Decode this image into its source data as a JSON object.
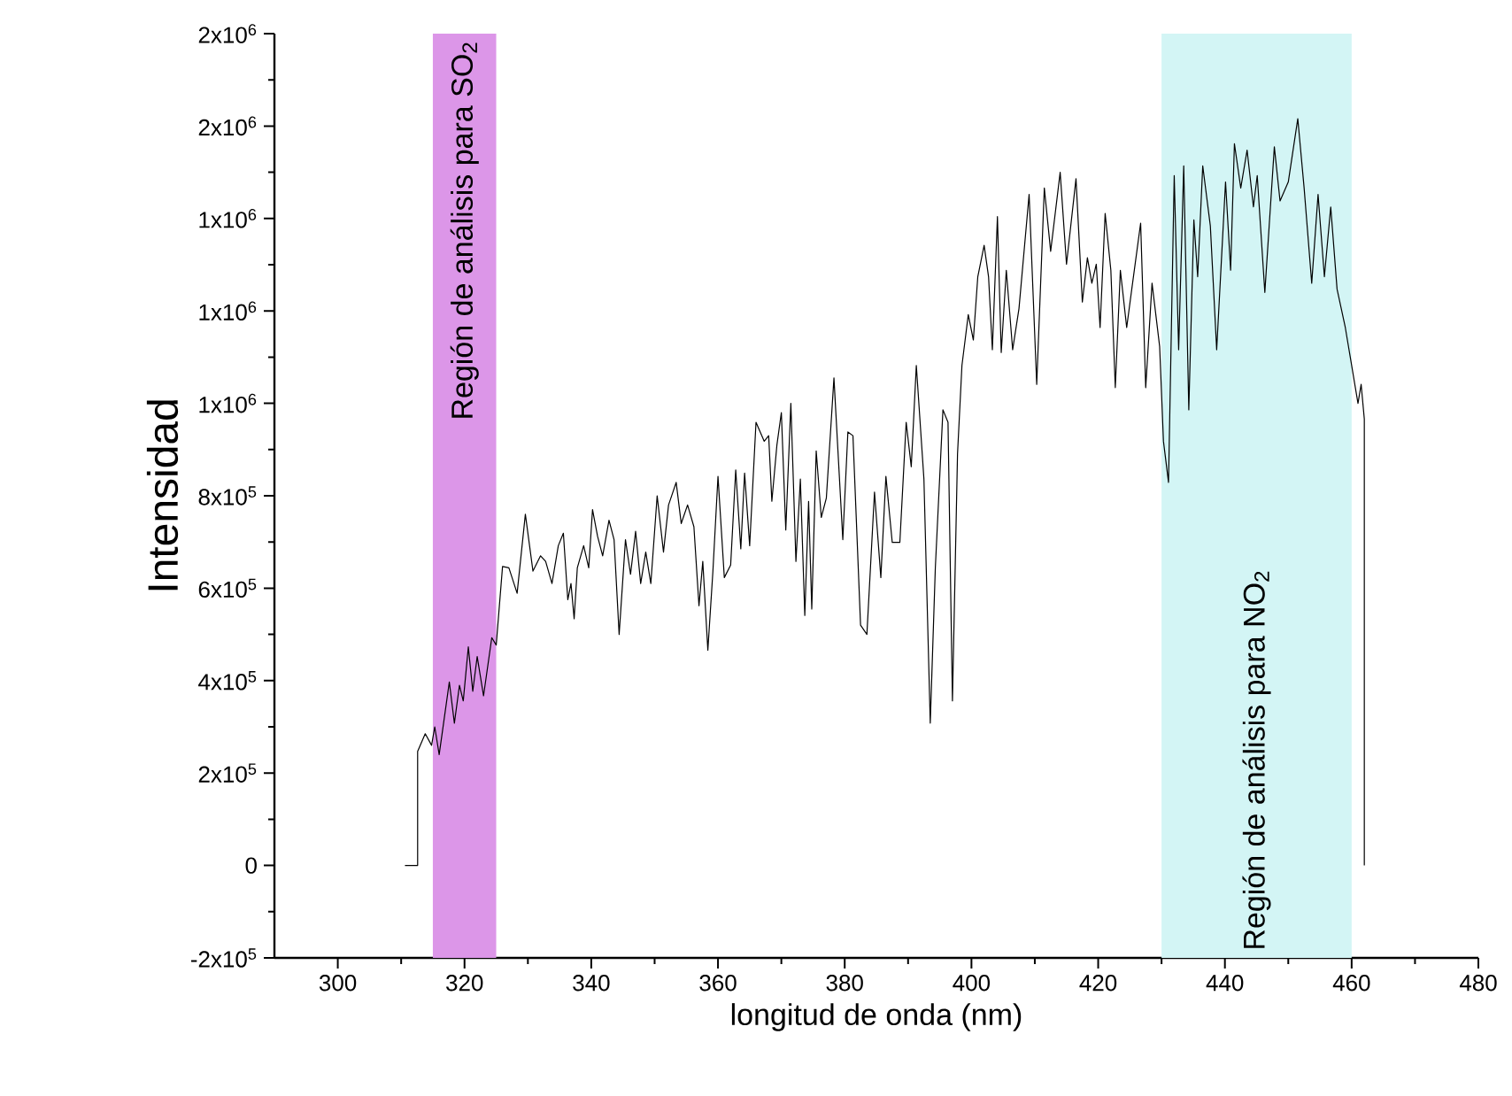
{
  "chart_data": {
    "type": "line",
    "xlabel": "longitud de onda (nm)",
    "ylabel": "Intensidad",
    "xlim": [
      290,
      480
    ],
    "xticks": [
      300,
      320,
      340,
      360,
      380,
      400,
      420,
      440,
      460,
      480
    ],
    "ylim": [
      -200000,
      1800000
    ],
    "yticks": [
      {
        "value": -200000,
        "label": "-2x10$^{5}$"
      },
      0,
      {
        "value": 200000,
        "label": "2x10$^{5}$"
      },
      {
        "value": 400000,
        "label": "4x10$^{5}$"
      },
      {
        "value": 600000,
        "label": "6x10$^{5}$"
      },
      {
        "value": 800000,
        "label": "8x10$^{5}$"
      },
      {
        "value": 1000000,
        "label": "1x10$^{6}$"
      },
      {
        "value": 1200000,
        "label": "1x10$^{6}$"
      },
      {
        "value": 1400000,
        "label": "1x10$^{6}$"
      },
      {
        "value": 1600000,
        "label": "2x10$^{6}$"
      },
      {
        "value": 1800000,
        "label": "2x10$^{6}$"
      }
    ],
    "grid": false,
    "marker": "none",
    "line_style": "solid",
    "bands": [
      {
        "axis": "x",
        "from": 315,
        "to": 325,
        "label": "Región de análisis para SO$_{2}$",
        "color": "#dc96e8"
      },
      {
        "axis": "x",
        "from": 430,
        "to": 460,
        "label": "Región de análisis para NO$_{2}$",
        "color": "#d3f5f5"
      }
    ],
    "series": [
      {
        "color": "#000000",
        "x": [
          310.6,
          312.6,
          312.6,
          313.8,
          314.8,
          315.3,
          316,
          317.6,
          318.4,
          319.2,
          319.8,
          320.6,
          321.3,
          322,
          323,
          324.3,
          325,
          326,
          327,
          328.3,
          329.6,
          330.8,
          332,
          332.8,
          333.8,
          334.8,
          335.6,
          336.3,
          336.8,
          337.3,
          337.8,
          338.8,
          339.6,
          340.2,
          341,
          341.8,
          342.8,
          343.6,
          344.4,
          345.4,
          346.2,
          347,
          347.8,
          348.6,
          349.4,
          350.4,
          351.4,
          352.2,
          353.4,
          354.2,
          355.2,
          356.2,
          357,
          357.6,
          358.4,
          359.2,
          360,
          361,
          362,
          362.8,
          363.6,
          364.2,
          365,
          366,
          367.3,
          368,
          368.5,
          369.3,
          370,
          370.7,
          371.5,
          372.3,
          373,
          373.7,
          374.3,
          374.8,
          375.5,
          376.3,
          377.1,
          378.3,
          379.7,
          380.5,
          381.3,
          382.5,
          383.5,
          384.7,
          385.7,
          386.5,
          387.5,
          388.7,
          389.7,
          390.5,
          391.3,
          392.5,
          393.5,
          394.3,
          395.5,
          396.3,
          397,
          397.8,
          398.5,
          399.5,
          400.3,
          401,
          402,
          402.7,
          403.3,
          404.1,
          404.7,
          405.5,
          406.5,
          407.5,
          409.1,
          410.3,
          411.5,
          412.5,
          414,
          415,
          416.5,
          417.5,
          418.3,
          419,
          419.7,
          420.3,
          421.1,
          422,
          422.7,
          423.5,
          424.5,
          425.3,
          426.7,
          427.5,
          428.5,
          429.7,
          430.3,
          431.1,
          432,
          432.7,
          433.5,
          434.3,
          435.1,
          435.7,
          436.5,
          437.7,
          438.7,
          440.1,
          440.9,
          441.5,
          442.5,
          443.5,
          444.5,
          445.1,
          446.3,
          447.8,
          448.7,
          450,
          451.5,
          452.5,
          453.7,
          454.7,
          455.7,
          456.7,
          457.7,
          459,
          460,
          461,
          461.5,
          462,
          462
        ],
        "values": [
          0,
          0,
          247000,
          285000,
          260000,
          300000,
          240000,
          397000,
          308000,
          390000,
          356000,
          473000,
          377000,
          452000,
          367000,
          493000,
          477000,
          647000,
          644000,
          589000,
          760000,
          637000,
          670000,
          658000,
          610000,
          692000,
          719000,
          575000,
          610000,
          534000,
          644000,
          692000,
          644000,
          770000,
          712000,
          670000,
          747000,
          705000,
          500000,
          705000,
          630000,
          723000,
          610000,
          678000,
          610000,
          800000,
          678000,
          780000,
          829000,
          740000,
          780000,
          733000,
          562000,
          658000,
          466000,
          637000,
          842000,
          623000,
          650000,
          856000,
          685000,
          849000,
          692000,
          959000,
          918000,
          930000,
          788000,
          910000,
          980000,
          726000,
          1000000,
          658000,
          836000,
          541000,
          788000,
          555000,
          897000,
          753000,
          795000,
          1055000,
          705000,
          938000,
          930000,
          520000,
          500000,
          808000,
          623000,
          842000,
          699000,
          699000,
          959000,
          863000,
          1082000,
          836000,
          308000,
          644000,
          986000,
          959000,
          356000,
          890000,
          1082000,
          1192000,
          1137000,
          1274000,
          1342000,
          1274000,
          1116000,
          1404000,
          1110000,
          1288000,
          1116000,
          1205000,
          1452000,
          1041000,
          1466000,
          1329000,
          1500000,
          1301000,
          1486000,
          1219000,
          1315000,
          1260000,
          1301000,
          1164000,
          1411000,
          1288000,
          1034000,
          1288000,
          1164000,
          1247000,
          1390000,
          1034000,
          1260000,
          1123000,
          918000,
          829000,
          1493000,
          1116000,
          1514000,
          986000,
          1397000,
          1274000,
          1514000,
          1384000,
          1116000,
          1479000,
          1288000,
          1562000,
          1466000,
          1548000,
          1425000,
          1493000,
          1240000,
          1555000,
          1438000,
          1479000,
          1616000,
          1466000,
          1260000,
          1452000,
          1274000,
          1425000,
          1247000,
          1164000,
          1082000,
          1000000,
          1041000,
          966000,
          0
        ]
      }
    ]
  }
}
